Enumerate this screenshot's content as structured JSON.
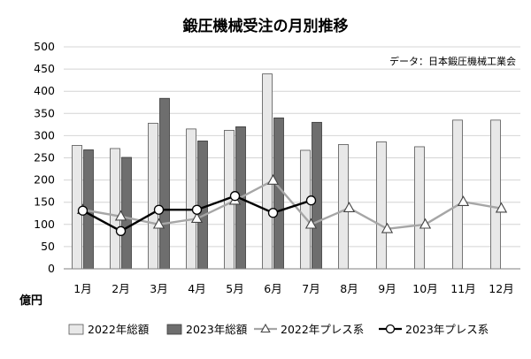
{
  "chart_data": {
    "type": "bar",
    "title": "鍛圧機械受注の月別推移",
    "source_note": "データ：日本鍛圧機械工業会",
    "unit_label": "億円",
    "categories": [
      "1月",
      "2月",
      "3月",
      "4月",
      "5月",
      "6月",
      "7月",
      "8月",
      "9月",
      "10月",
      "11月",
      "12月"
    ],
    "ylim": [
      0,
      500
    ],
    "yticks": [
      0,
      50,
      100,
      150,
      200,
      250,
      300,
      350,
      400,
      450,
      500
    ],
    "grid": true,
    "legend_position": "bottom",
    "bar_series": [
      {
        "name": "2022年総額",
        "color": "#e8e8e8",
        "stroke": "#555555",
        "values": [
          278,
          271,
          328,
          315,
          312,
          439,
          267,
          280,
          286,
          275,
          335,
          335
        ]
      },
      {
        "name": "2023年総額",
        "color": "#6e6e6e",
        "stroke": "#3a3a3a",
        "values": [
          268,
          251,
          384,
          288,
          320,
          340,
          330,
          null,
          null,
          null,
          null,
          null
        ]
      }
    ],
    "line_series": [
      {
        "name": "2022年プレス系",
        "color": "#a6a6a6",
        "marker": "triangle",
        "values": [
          133,
          118,
          100,
          113,
          154,
          199,
          100,
          137,
          90,
          100,
          151,
          136
        ]
      },
      {
        "name": "2023年プレス系",
        "color": "#000000",
        "marker": "circle",
        "values": [
          131,
          85,
          133,
          133,
          164,
          126,
          154,
          null,
          null,
          null,
          null,
          null
        ]
      }
    ]
  }
}
